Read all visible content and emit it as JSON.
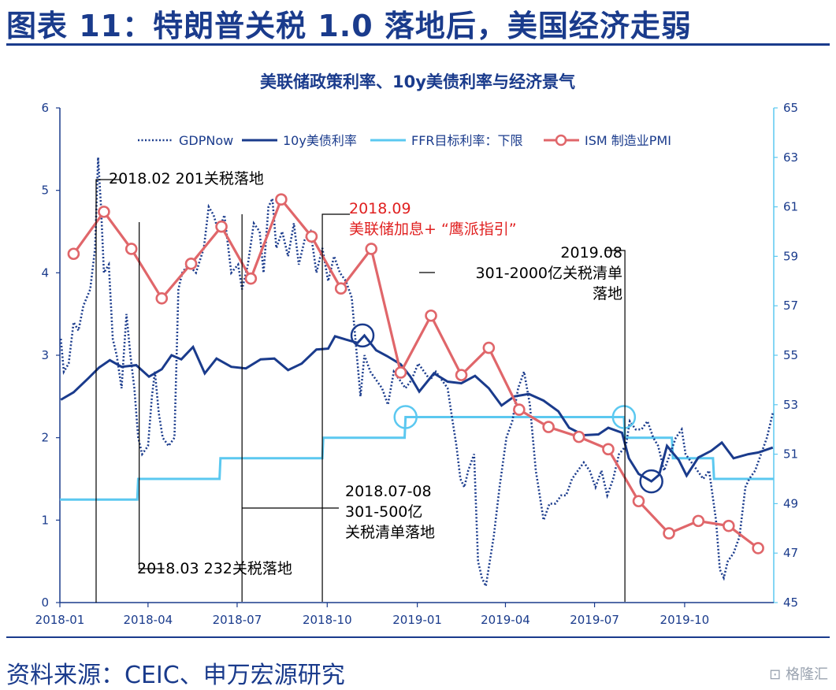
{
  "figure": {
    "title": "图表 11：特朗普关税 1.0 落地后，美国经济走弱",
    "source": "资料来源：CEIC、申万宏源研究",
    "watermark": "格隆汇"
  },
  "chart_data": {
    "type": "line",
    "title": "美联储政策利率、10y美债利率与经济景气",
    "xlabel": "",
    "ylabel_left": "",
    "ylabel_right": "",
    "ylim_left": [
      0,
      6
    ],
    "ylim_right": [
      45,
      65
    ],
    "yticks_left": [
      "0",
      "1",
      "2",
      "3",
      "4",
      "5",
      "6"
    ],
    "yticks_right": [
      "45",
      "47",
      "49",
      "51",
      "53",
      "55",
      "57",
      "59",
      "61",
      "63",
      "65"
    ],
    "xticks": [
      "2018-01",
      "2018-04",
      "2018-07",
      "2018-10",
      "2019-01",
      "2019-04",
      "2019-07",
      "2019-10"
    ],
    "xlim": [
      "2018-01-01",
      "2019-12-31"
    ],
    "legend_position": "top",
    "grid": false,
    "colors": {
      "gdpnow": "#1a3b8c",
      "ust10y": "#1a3b8c",
      "ffr": "#5bc8f0",
      "pmi": "#e0666a",
      "axis": "#1a3b8c",
      "right_axis": "#5bc8f0"
    },
    "series": [
      {
        "name": "GDPNow",
        "axis": "left",
        "style": "dotted",
        "points": [
          [
            "2018-01-02",
            3.2
          ],
          [
            "2018-01-05",
            2.8
          ],
          [
            "2018-01-10",
            2.9
          ],
          [
            "2018-01-15",
            3.4
          ],
          [
            "2018-01-20",
            3.3
          ],
          [
            "2018-01-25",
            3.6
          ],
          [
            "2018-02-01",
            3.8
          ],
          [
            "2018-02-06",
            4.3
          ],
          [
            "2018-02-09",
            5.4
          ],
          [
            "2018-02-12",
            4.8
          ],
          [
            "2018-02-15",
            4.0
          ],
          [
            "2018-02-20",
            4.1
          ],
          [
            "2018-02-24",
            3.2
          ],
          [
            "2018-02-28",
            3.0
          ],
          [
            "2018-03-05",
            2.6
          ],
          [
            "2018-03-10",
            3.5
          ],
          [
            "2018-03-14",
            3.0
          ],
          [
            "2018-03-18",
            2.6
          ],
          [
            "2018-03-22",
            2.0
          ],
          [
            "2018-03-26",
            1.8
          ],
          [
            "2018-04-01",
            1.9
          ],
          [
            "2018-04-05",
            2.5
          ],
          [
            "2018-04-08",
            2.8
          ],
          [
            "2018-04-12",
            2.3
          ],
          [
            "2018-04-16",
            2.0
          ],
          [
            "2018-04-22",
            1.9
          ],
          [
            "2018-04-28",
            2.0
          ],
          [
            "2018-05-02",
            3.8
          ],
          [
            "2018-05-06",
            4.0
          ],
          [
            "2018-05-12",
            4.1
          ],
          [
            "2018-05-20",
            4.0
          ],
          [
            "2018-05-28",
            4.3
          ],
          [
            "2018-06-02",
            4.8
          ],
          [
            "2018-06-07",
            4.7
          ],
          [
            "2018-06-12",
            4.5
          ],
          [
            "2018-06-18",
            4.7
          ],
          [
            "2018-06-25",
            4.0
          ],
          [
            "2018-07-02",
            4.1
          ],
          [
            "2018-07-06",
            3.8
          ],
          [
            "2018-07-12",
            4.1
          ],
          [
            "2018-07-18",
            4.6
          ],
          [
            "2018-07-24",
            4.5
          ],
          [
            "2018-07-28",
            4.0
          ],
          [
            "2018-08-02",
            4.8
          ],
          [
            "2018-08-06",
            4.9
          ],
          [
            "2018-08-10",
            4.3
          ],
          [
            "2018-08-16",
            4.5
          ],
          [
            "2018-08-22",
            4.2
          ],
          [
            "2018-08-28",
            4.6
          ],
          [
            "2018-09-02",
            4.1
          ],
          [
            "2018-09-08",
            4.4
          ],
          [
            "2018-09-14",
            4.5
          ],
          [
            "2018-09-20",
            4.0
          ],
          [
            "2018-09-26",
            4.3
          ],
          [
            "2018-10-02",
            3.9
          ],
          [
            "2018-10-08",
            4.2
          ],
          [
            "2018-10-14",
            4.0
          ],
          [
            "2018-10-20",
            3.9
          ],
          [
            "2018-10-26",
            3.7
          ],
          [
            "2018-11-01",
            2.9
          ],
          [
            "2018-11-04",
            2.5
          ],
          [
            "2018-11-08",
            3.0
          ],
          [
            "2018-11-14",
            2.8
          ],
          [
            "2018-11-20",
            2.7
          ],
          [
            "2018-11-26",
            2.6
          ],
          [
            "2018-12-02",
            2.4
          ],
          [
            "2018-12-08",
            2.8
          ],
          [
            "2018-12-14",
            2.7
          ],
          [
            "2018-12-20",
            2.6
          ],
          [
            "2018-12-26",
            2.7
          ],
          [
            "2019-01-02",
            2.9
          ],
          [
            "2019-01-08",
            2.8
          ],
          [
            "2019-01-14",
            2.7
          ],
          [
            "2019-01-20",
            2.8
          ],
          [
            "2019-01-26",
            2.7
          ],
          [
            "2019-02-01",
            2.6
          ],
          [
            "2019-02-06",
            2.2
          ],
          [
            "2019-02-10",
            1.9
          ],
          [
            "2019-02-14",
            1.5
          ],
          [
            "2019-02-18",
            1.4
          ],
          [
            "2019-02-22",
            1.6
          ],
          [
            "2019-02-28",
            1.8
          ],
          [
            "2019-03-04",
            0.5
          ],
          [
            "2019-03-08",
            0.3
          ],
          [
            "2019-03-12",
            0.2
          ],
          [
            "2019-03-16",
            0.5
          ],
          [
            "2019-03-20",
            0.8
          ],
          [
            "2019-03-26",
            1.4
          ],
          [
            "2019-04-02",
            2.0
          ],
          [
            "2019-04-08",
            2.2
          ],
          [
            "2019-04-14",
            2.6
          ],
          [
            "2019-04-20",
            2.8
          ],
          [
            "2019-04-26",
            2.4
          ],
          [
            "2019-05-02",
            1.6
          ],
          [
            "2019-05-06",
            1.3
          ],
          [
            "2019-05-10",
            1.0
          ],
          [
            "2019-05-16",
            1.2
          ],
          [
            "2019-05-22",
            1.2
          ],
          [
            "2019-05-28",
            1.3
          ],
          [
            "2019-06-02",
            1.3
          ],
          [
            "2019-06-08",
            1.5
          ],
          [
            "2019-06-14",
            1.6
          ],
          [
            "2019-06-20",
            1.7
          ],
          [
            "2019-06-26",
            1.6
          ],
          [
            "2019-07-02",
            1.4
          ],
          [
            "2019-07-08",
            1.6
          ],
          [
            "2019-07-14",
            1.3
          ],
          [
            "2019-07-20",
            1.5
          ],
          [
            "2019-07-26",
            1.8
          ],
          [
            "2019-08-02",
            1.9
          ],
          [
            "2019-08-06",
            2.2
          ],
          [
            "2019-08-12",
            2.1
          ],
          [
            "2019-08-18",
            2.1
          ],
          [
            "2019-08-24",
            2.2
          ],
          [
            "2019-08-30",
            2.0
          ],
          [
            "2019-09-04",
            1.9
          ],
          [
            "2019-09-10",
            1.6
          ],
          [
            "2019-09-16",
            1.8
          ],
          [
            "2019-09-22",
            2.0
          ],
          [
            "2019-09-28",
            2.1
          ],
          [
            "2019-10-02",
            1.8
          ],
          [
            "2019-10-08",
            1.7
          ],
          [
            "2019-10-14",
            1.6
          ],
          [
            "2019-10-20",
            1.5
          ],
          [
            "2019-10-26",
            1.6
          ],
          [
            "2019-11-02",
            1.0
          ],
          [
            "2019-11-06",
            0.4
          ],
          [
            "2019-11-10",
            0.3
          ],
          [
            "2019-11-14",
            0.5
          ],
          [
            "2019-11-20",
            0.6
          ],
          [
            "2019-11-26",
            0.8
          ],
          [
            "2019-12-02",
            1.4
          ],
          [
            "2019-12-06",
            1.5
          ],
          [
            "2019-12-12",
            1.6
          ],
          [
            "2019-12-18",
            1.8
          ],
          [
            "2019-12-24",
            2.0
          ],
          [
            "2019-12-30",
            2.3
          ]
        ]
      },
      {
        "name": "10y美债利率",
        "axis": "left",
        "style": "solid",
        "points": [
          [
            "2018-01-02",
            2.46
          ],
          [
            "2018-01-15",
            2.55
          ],
          [
            "2018-01-30",
            2.72
          ],
          [
            "2018-02-10",
            2.85
          ],
          [
            "2018-02-21",
            2.94
          ],
          [
            "2018-03-05",
            2.86
          ],
          [
            "2018-03-20",
            2.88
          ],
          [
            "2018-04-02",
            2.74
          ],
          [
            "2018-04-15",
            2.83
          ],
          [
            "2018-04-25",
            3.0
          ],
          [
            "2018-05-05",
            2.95
          ],
          [
            "2018-05-17",
            3.1
          ],
          [
            "2018-05-29",
            2.78
          ],
          [
            "2018-06-10",
            2.96
          ],
          [
            "2018-06-25",
            2.86
          ],
          [
            "2018-07-10",
            2.84
          ],
          [
            "2018-07-25",
            2.95
          ],
          [
            "2018-08-08",
            2.96
          ],
          [
            "2018-08-22",
            2.82
          ],
          [
            "2018-09-05",
            2.9
          ],
          [
            "2018-09-20",
            3.07
          ],
          [
            "2018-10-02",
            3.08
          ],
          [
            "2018-10-09",
            3.23
          ],
          [
            "2018-10-20",
            3.19
          ],
          [
            "2018-11-01",
            3.15
          ],
          [
            "2018-11-08",
            3.24
          ],
          [
            "2018-11-20",
            3.06
          ],
          [
            "2018-12-01",
            2.99
          ],
          [
            "2018-12-15",
            2.89
          ],
          [
            "2018-12-25",
            2.74
          ],
          [
            "2019-01-03",
            2.56
          ],
          [
            "2019-01-18",
            2.78
          ],
          [
            "2019-02-01",
            2.68
          ],
          [
            "2019-02-15",
            2.66
          ],
          [
            "2019-03-01",
            2.75
          ],
          [
            "2019-03-15",
            2.6
          ],
          [
            "2019-03-28",
            2.39
          ],
          [
            "2019-04-10",
            2.5
          ],
          [
            "2019-04-25",
            2.53
          ],
          [
            "2019-05-10",
            2.45
          ],
          [
            "2019-05-25",
            2.32
          ],
          [
            "2019-06-05",
            2.12
          ],
          [
            "2019-06-20",
            2.03
          ],
          [
            "2019-07-05",
            2.04
          ],
          [
            "2019-07-15",
            2.12
          ],
          [
            "2019-07-29",
            2.06
          ],
          [
            "2019-08-05",
            1.75
          ],
          [
            "2019-08-15",
            1.56
          ],
          [
            "2019-08-28",
            1.47
          ],
          [
            "2019-09-05",
            1.55
          ],
          [
            "2019-09-13",
            1.9
          ],
          [
            "2019-09-25",
            1.73
          ],
          [
            "2019-10-03",
            1.54
          ],
          [
            "2019-10-15",
            1.76
          ],
          [
            "2019-10-28",
            1.84
          ],
          [
            "2019-11-08",
            1.94
          ],
          [
            "2019-11-20",
            1.75
          ],
          [
            "2019-12-05",
            1.8
          ],
          [
            "2019-12-15",
            1.82
          ],
          [
            "2019-12-30",
            1.88
          ]
        ]
      },
      {
        "name": "FFR目标利率：下限",
        "axis": "left",
        "style": "step",
        "points": [
          [
            "2018-01-01",
            1.25
          ],
          [
            "2018-03-21",
            1.25
          ],
          [
            "2018-03-22",
            1.5
          ],
          [
            "2018-06-13",
            1.5
          ],
          [
            "2018-06-14",
            1.75
          ],
          [
            "2018-09-26",
            1.75
          ],
          [
            "2018-09-27",
            2.0
          ],
          [
            "2018-12-19",
            2.0
          ],
          [
            "2018-12-20",
            2.25
          ],
          [
            "2019-07-31",
            2.25
          ],
          [
            "2019-08-01",
            2.0
          ],
          [
            "2019-09-18",
            2.0
          ],
          [
            "2019-09-19",
            1.75
          ],
          [
            "2019-10-30",
            1.75
          ],
          [
            "2019-10-31",
            1.5
          ],
          [
            "2019-12-31",
            1.5
          ]
        ]
      },
      {
        "name": "ISM 制造业PMI",
        "axis": "right",
        "style": "line-circle",
        "points": [
          [
            "2018-01-15",
            59.1
          ],
          [
            "2018-02-15",
            60.8
          ],
          [
            "2018-03-15",
            59.3
          ],
          [
            "2018-04-15",
            57.3
          ],
          [
            "2018-05-15",
            58.7
          ],
          [
            "2018-06-15",
            60.2
          ],
          [
            "2018-07-15",
            58.1
          ],
          [
            "2018-08-15",
            61.3
          ],
          [
            "2018-09-15",
            59.8
          ],
          [
            "2018-10-15",
            57.7
          ],
          [
            "2018-11-15",
            59.3
          ],
          [
            "2018-12-15",
            54.3
          ],
          [
            "2019-01-15",
            56.6
          ],
          [
            "2019-02-15",
            54.2
          ],
          [
            "2019-03-15",
            55.3
          ],
          [
            "2019-04-15",
            52.8
          ],
          [
            "2019-05-15",
            52.1
          ],
          [
            "2019-06-15",
            51.7
          ],
          [
            "2019-07-15",
            51.2
          ],
          [
            "2019-08-15",
            49.1
          ],
          [
            "2019-09-15",
            47.8
          ],
          [
            "2019-10-15",
            48.3
          ],
          [
            "2019-11-15",
            48.1
          ],
          [
            "2019-12-15",
            47.2
          ]
        ]
      }
    ],
    "annotations": [
      {
        "id": "a201",
        "lines": [
          "2018.02 201关税落地"
        ],
        "date": "2018-02-07",
        "color": "black"
      },
      {
        "id": "a232",
        "lines": [
          "2018.03  232关税落地"
        ],
        "date": "2018-03-23",
        "color": "black"
      },
      {
        "id": "a301",
        "lines": [
          "2018.07-08",
          "301-500亿",
          "关税清单落地"
        ],
        "date": "2018-07-06",
        "color": "black"
      },
      {
        "id": "afed",
        "lines": [
          "2018.09",
          "美联储加息+ “鹰派指引”"
        ],
        "date": "2018-09-26",
        "color": "red"
      },
      {
        "id": "a2019",
        "lines": [
          "2019.08",
          "301-2000亿关税清单",
          "落地"
        ],
        "date": "2019-08-01",
        "color": "black"
      }
    ]
  }
}
